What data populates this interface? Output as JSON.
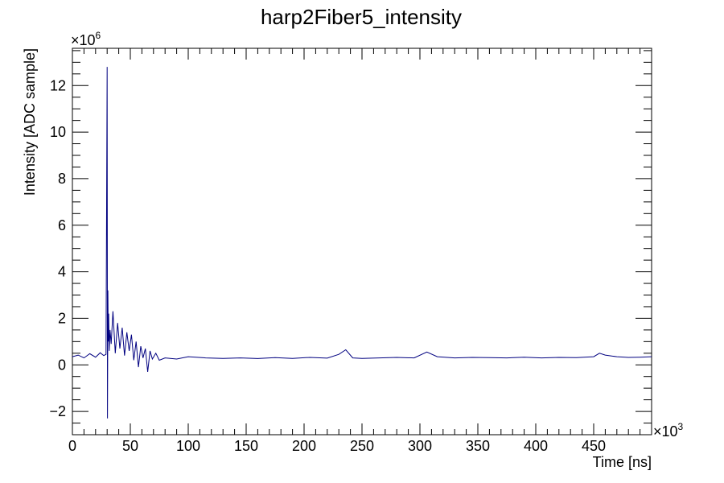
{
  "chart_data": {
    "type": "line",
    "title": "harp2Fiber5_intensity",
    "xlabel": "Time [ns]",
    "ylabel": "Intensity [ADC sample]",
    "x_multiplier_label": "×10",
    "x_multiplier_exp": "3",
    "y_multiplier_label": "×10",
    "y_multiplier_exp": "6",
    "x_unit_scale": 1000,
    "y_unit_scale": 1000000,
    "xlim": [
      0,
      500000
    ],
    "ylim": [
      -3000000,
      13600000
    ],
    "x_ticks": [
      0,
      50000,
      100000,
      150000,
      200000,
      250000,
      300000,
      350000,
      400000,
      450000
    ],
    "x_tick_labels": [
      "0",
      "50",
      "100",
      "150",
      "200",
      "250",
      "300",
      "350",
      "400",
      "450"
    ],
    "y_ticks": [
      -2000000,
      0,
      2000000,
      4000000,
      6000000,
      8000000,
      10000000,
      12000000
    ],
    "y_tick_labels": [
      "−2",
      "0",
      "2",
      "4",
      "6",
      "8",
      "10",
      "12"
    ],
    "grid": false,
    "line_color": "#000080",
    "series": [
      {
        "x": [
          0,
          5000,
          10000,
          15000,
          20000,
          24000,
          27000,
          29000,
          30000,
          30300,
          30600,
          31000,
          31300,
          31800,
          32500,
          33500,
          35000,
          37000,
          39000,
          41000,
          43000,
          45000,
          47000,
          49000,
          51000,
          53000,
          55000,
          57000,
          59000,
          61000,
          63000,
          65000,
          67000,
          69000,
          72000,
          75000,
          80000,
          90000,
          100000,
          115000,
          130000,
          145000,
          160000,
          175000,
          190000,
          205000,
          220000,
          230000,
          236000,
          242000,
          250000,
          265000,
          280000,
          295000,
          306000,
          315000,
          330000,
          345000,
          360000,
          375000,
          390000,
          405000,
          420000,
          435000,
          450000,
          455000,
          460000,
          470000,
          480000,
          490000,
          500000
        ],
        "y": [
          350000,
          420000,
          300000,
          480000,
          330000,
          520000,
          400000,
          450000,
          12800000,
          -2300000,
          3200000,
          1000000,
          2200000,
          600000,
          1500000,
          900000,
          2300000,
          500000,
          1800000,
          700000,
          1600000,
          400000,
          1400000,
          600000,
          1300000,
          200000,
          1000000,
          -100000,
          800000,
          300000,
          700000,
          -300000,
          600000,
          250000,
          500000,
          200000,
          300000,
          250000,
          350000,
          300000,
          280000,
          300000,
          270000,
          310000,
          280000,
          320000,
          290000,
          450000,
          650000,
          300000,
          280000,
          300000,
          320000,
          300000,
          550000,
          350000,
          300000,
          320000,
          310000,
          300000,
          330000,
          300000,
          320000,
          310000,
          350000,
          500000,
          420000,
          350000,
          320000,
          330000,
          350000
        ]
      }
    ]
  }
}
